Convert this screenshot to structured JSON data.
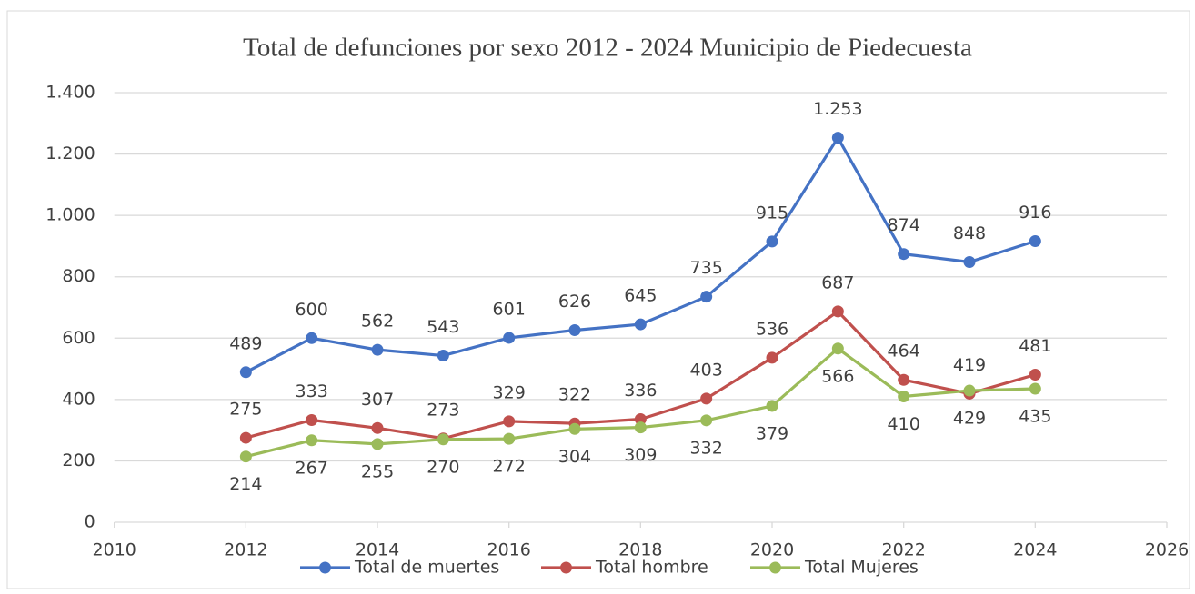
{
  "chart_data": {
    "type": "line",
    "title": "Total de defunciones por sexo 2012 - 2024 Municipio de Piedecuesta",
    "x": [
      2012,
      2013,
      2014,
      2015,
      2016,
      2017,
      2018,
      2019,
      2020,
      2021,
      2022,
      2023,
      2024
    ],
    "series": [
      {
        "name": "Total de muertes",
        "color": "#4472c4",
        "values": [
          489,
          600,
          562,
          543,
          601,
          626,
          645,
          735,
          915,
          1253,
          874,
          848,
          916
        ],
        "value_labels": [
          "489",
          "600",
          "562",
          "543",
          "601",
          "626",
          "645",
          "735",
          "915",
          "1.253",
          "874",
          "848",
          "916"
        ]
      },
      {
        "name": "Total hombre",
        "color": "#c0504d",
        "values": [
          275,
          333,
          307,
          273,
          329,
          322,
          336,
          403,
          536,
          687,
          464,
          419,
          481
        ]
      },
      {
        "name": "Total Mujeres",
        "color": "#9bbb59",
        "values": [
          214,
          267,
          255,
          270,
          272,
          304,
          309,
          332,
          379,
          566,
          410,
          429,
          435
        ]
      }
    ],
    "xlim": [
      2010,
      2026
    ],
    "xticks": [
      2010,
      2012,
      2014,
      2016,
      2018,
      2020,
      2022,
      2024,
      2026
    ],
    "ylim": [
      0,
      1400
    ],
    "yticks": [
      0,
      200,
      400,
      600,
      800,
      {
        "value": 1000,
        "label": "1.000"
      },
      {
        "value": 1200,
        "label": "1.200"
      },
      {
        "value": 1400,
        "label": "1.400"
      }
    ],
    "grid": true,
    "legend": "bottom"
  }
}
